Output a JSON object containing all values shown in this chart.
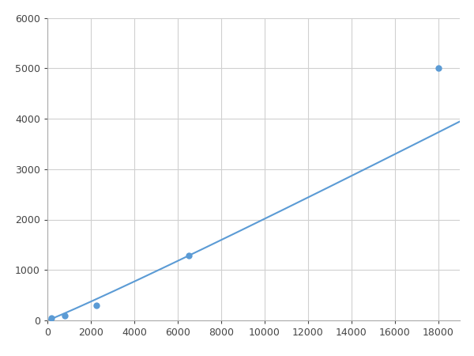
{
  "x": [
    200,
    800,
    2250,
    6500,
    18000
  ],
  "y": [
    50,
    100,
    300,
    1280,
    5000
  ],
  "line_color": "#5b9bd5",
  "marker_color": "#5b9bd5",
  "marker_size": 6,
  "line_width": 1.5,
  "xlim": [
    0,
    19000
  ],
  "ylim": [
    0,
    6000
  ],
  "xticks": [
    0,
    2000,
    4000,
    6000,
    8000,
    10000,
    12000,
    14000,
    16000,
    18000
  ],
  "yticks": [
    0,
    1000,
    2000,
    3000,
    4000,
    5000,
    6000
  ],
  "grid_color": "#d0d0d0",
  "background_color": "#ffffff",
  "figsize": [
    6.0,
    4.5
  ],
  "dpi": 100
}
